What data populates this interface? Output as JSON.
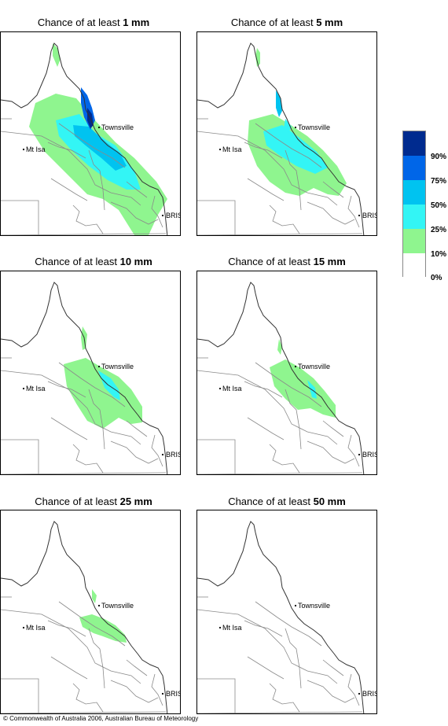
{
  "panels": [
    {
      "prefix": "Chance of at least ",
      "amount": "1 mm"
    },
    {
      "prefix": "Chance of at least ",
      "amount": "5 mm"
    },
    {
      "prefix": "Chance of at least ",
      "amount": "10 mm"
    },
    {
      "prefix": "Chance of at least ",
      "amount": "15 mm"
    },
    {
      "prefix": "Chance of at least ",
      "amount": "25 mm"
    },
    {
      "prefix": "Chance of at least ",
      "amount": "50 mm"
    }
  ],
  "place_labels": {
    "townsville": "Townsville",
    "mt_isa": "Mt Isa",
    "brisbane": "BRIS"
  },
  "legend": {
    "labels": [
      "90%",
      "75%",
      "50%",
      "25%",
      "10%",
      "0%"
    ],
    "colors": [
      "#002b8f",
      "#0066e8",
      "#00c3f0",
      "#33f5f5",
      "#8ff58f",
      "#ffffff"
    ]
  },
  "copyright": "© Commonwealth of Australia 2006, Australian Bureau of Meteorology"
}
